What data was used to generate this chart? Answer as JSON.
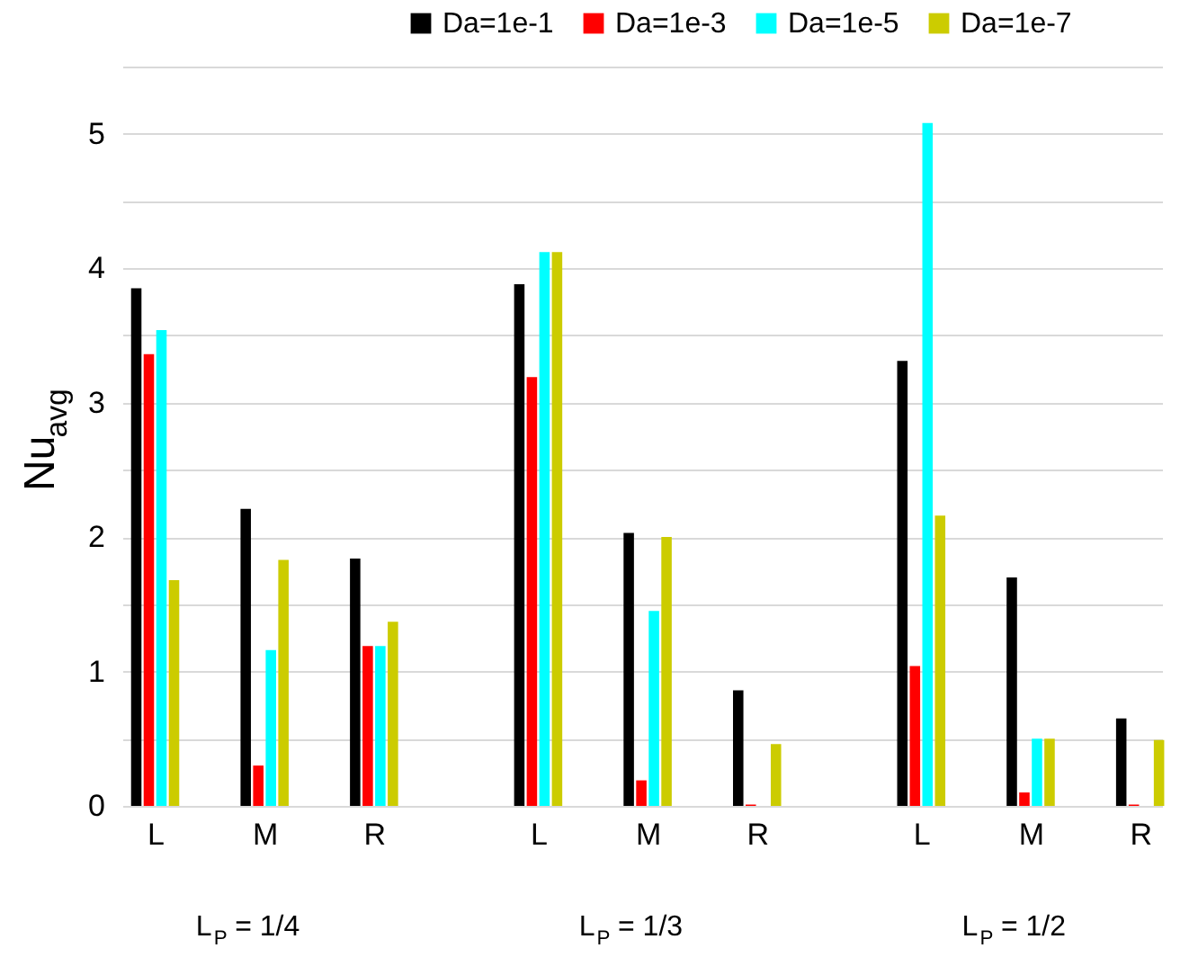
{
  "chart_data": {
    "type": "bar",
    "categories": [
      "L",
      "M",
      "R",
      "L",
      "M",
      "R",
      "L",
      "M",
      "R"
    ],
    "series": [
      {
        "name": "Da=1e-1",
        "color": "#000000",
        "values": [
          3.85,
          2.21,
          1.84,
          3.88,
          2.03,
          0.86,
          3.31,
          1.7,
          0.65
        ]
      },
      {
        "name": "Da=1e-3",
        "color": "#ff0000",
        "values": [
          3.36,
          0.3,
          1.19,
          3.19,
          0.19,
          0.01,
          1.04,
          0.1,
          0.01
        ]
      },
      {
        "name": "Da=1e-5",
        "color": "#00ffff",
        "values": [
          3.54,
          1.16,
          1.19,
          4.12,
          1.45,
          0,
          5.08,
          0.5,
          0
        ]
      },
      {
        "name": "Da=1e-7",
        "color": "#cccc00",
        "values": [
          1.68,
          1.83,
          1.37,
          4.12,
          2.0,
          0.46,
          2.16,
          0.5,
          0.49
        ]
      }
    ],
    "ylabel": "Nu$_{avg}$",
    "ylim": [
      0,
      5.5
    ],
    "yticks": [
      0,
      {
        "value": 0.5,
        "label": null
      },
      1,
      {
        "value": 1.5,
        "label": null
      },
      2,
      {
        "value": 2.5,
        "label": null
      },
      3,
      {
        "value": 3.5,
        "label": null
      },
      4,
      {
        "value": 4.5,
        "label": null
      },
      5,
      {
        "value": 5.5,
        "label": null
      }
    ],
    "grid": "y",
    "legend": "top right",
    "annotations": [
      "L$_{P}$ = 1/4",
      "L$_{P}$ = 1/3",
      "L$_{P}$ = 1/2"
    ]
  }
}
